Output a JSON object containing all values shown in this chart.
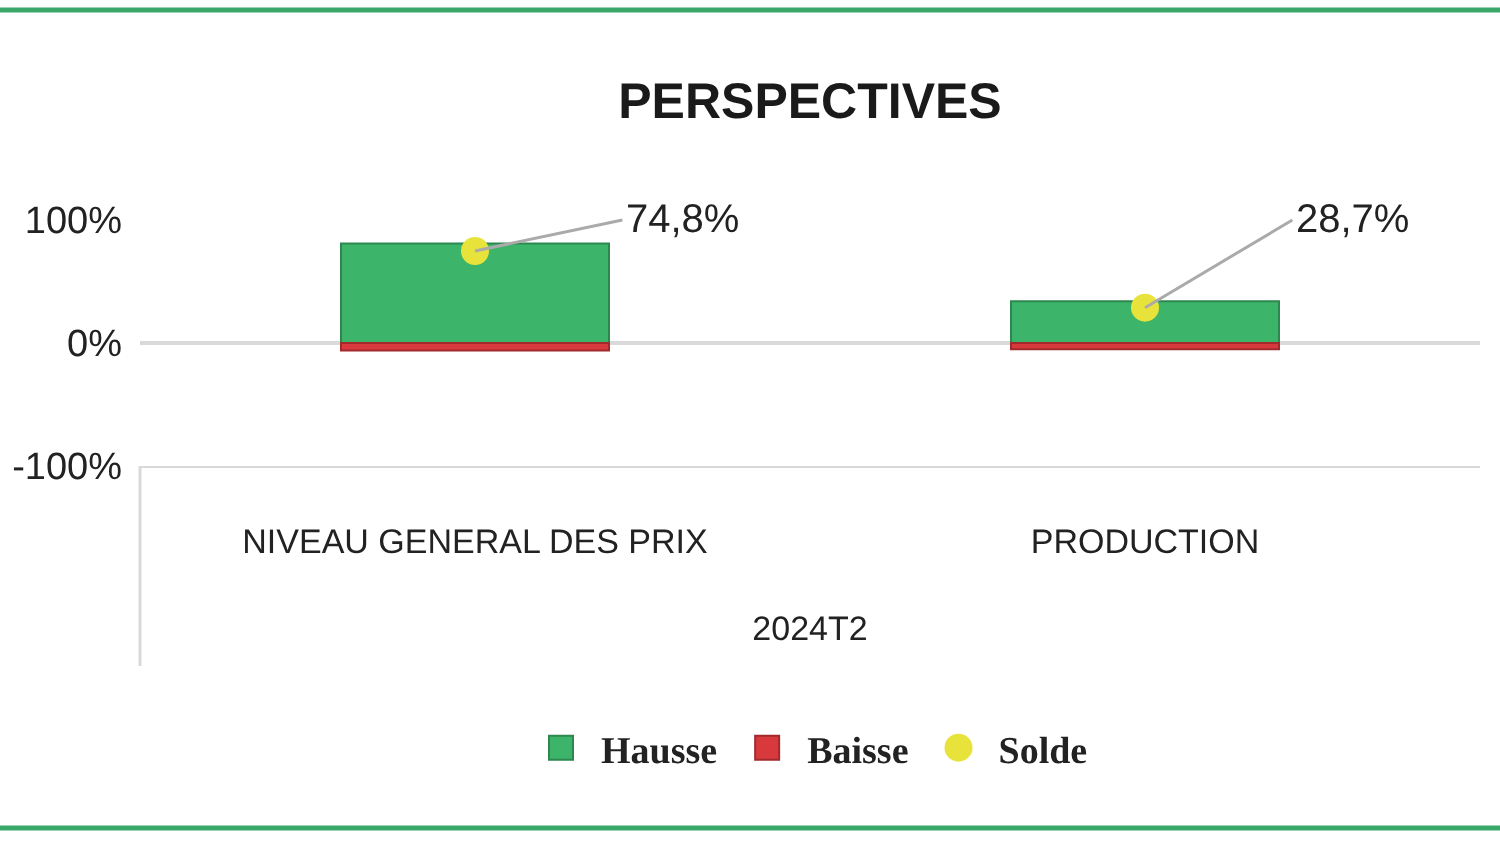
{
  "chart_data": {
    "type": "bar",
    "title": "PERSPECTIVES",
    "xlabel": "2024T2",
    "categories": [
      "NIVEAU GENERAL DES PRIX",
      "PRODUCTION"
    ],
    "stacked": true,
    "series": [
      {
        "name": "Hausse",
        "color": "#3cb46a",
        "values": [
          81,
          34
        ]
      },
      {
        "name": "Baisse",
        "color": "#d8393c",
        "values": [
          -6,
          -5
        ]
      },
      {
        "name": "Solde",
        "type": "scatter",
        "marker": "circle",
        "color": "#e8e33a",
        "values": [
          74.8,
          28.7
        ],
        "value_labels": [
          "74,8%",
          "28,7%"
        ]
      }
    ],
    "ylim": [
      -100,
      100
    ],
    "yticks": [
      {
        "value": -100,
        "label": "-100%"
      },
      {
        "value": 0,
        "label": "0%"
      },
      {
        "value": 100,
        "label": "100%"
      }
    ],
    "grid": "y",
    "legend": "bottom"
  }
}
